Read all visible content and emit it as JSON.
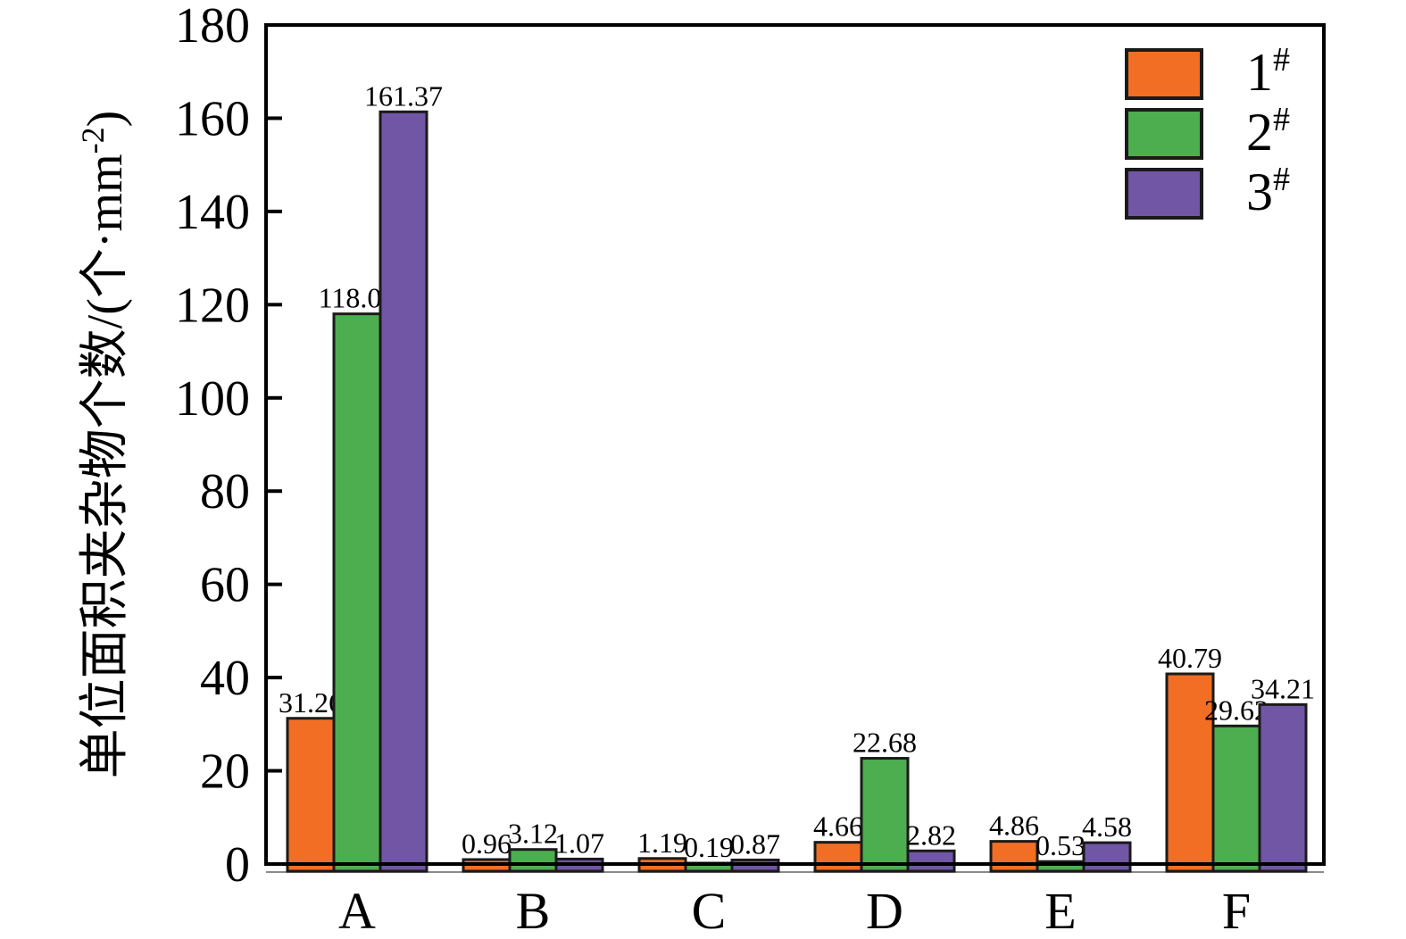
{
  "figure": {
    "background": "#FFFFFF"
  },
  "chart_data": {
    "type": "bar",
    "title": "",
    "xlabel": "",
    "ylabel": "单位面积夹杂物个数/(个·mm⁻²)",
    "ylabel_parts": {
      "base": "单位面积夹杂物个数/(个·mm",
      "sup": "-2",
      "tail": ")"
    },
    "categories": [
      "A",
      "B",
      "C",
      "D",
      "E",
      "F"
    ],
    "series": [
      {
        "name": "1#",
        "legend": {
          "base": "1",
          "sup": "#"
        },
        "color": "#F26E24",
        "values": [
          31.26,
          0.96,
          1.19,
          4.66,
          4.86,
          40.79
        ],
        "labels": [
          "31.26",
          "0.96",
          "1.19",
          "4.66",
          "4.86",
          "40.79"
        ]
      },
      {
        "name": "2#",
        "legend": {
          "base": "2",
          "sup": "#"
        },
        "color": "#4CAE4F",
        "values": [
          118.03,
          3.12,
          0.19,
          22.68,
          0.53,
          29.62
        ],
        "labels": [
          "118.03",
          "3.12",
          "0.19",
          "22.68",
          "0.53",
          "29.62"
        ]
      },
      {
        "name": "3#",
        "legend": {
          "base": "3",
          "sup": "#"
        },
        "color": "#7156A6",
        "values": [
          161.37,
          1.07,
          0.87,
          2.82,
          4.58,
          34.21
        ],
        "labels": [
          "161.37",
          "1.07",
          "0.87",
          "2.82",
          "4.58",
          "34.21"
        ]
      }
    ],
    "ylim": [
      0,
      180
    ],
    "yticks": [
      0,
      20,
      40,
      60,
      80,
      100,
      120,
      140,
      160,
      180
    ],
    "ytick_labels": [
      "0",
      "20",
      "40",
      "60",
      "80",
      "100",
      "120",
      "140",
      "160",
      "180"
    ],
    "grid": false,
    "legend_position": "top-right",
    "value_labels": true,
    "colors": {
      "bar_edge": "#1A1A1A",
      "axis": "#000000",
      "text": "#000000",
      "background": "#FFFFFF"
    }
  }
}
